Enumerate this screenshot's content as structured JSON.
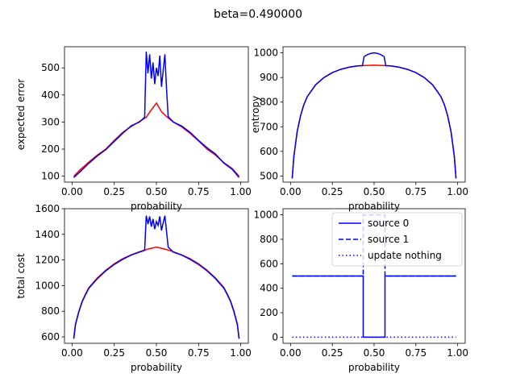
{
  "figure": {
    "suptitle": "beta=0.490000"
  },
  "colors": {
    "red": "#ff0000",
    "blue": "#0000ff",
    "axis": "#000000"
  },
  "chart_data": [
    {
      "id": "expected-error",
      "type": "line",
      "xlabel": "probability",
      "ylabel": "expected error",
      "xlim": [
        -0.045,
        1.045
      ],
      "ylim": [
        78,
        578
      ],
      "xticks": [
        0.0,
        0.25,
        0.5,
        0.75,
        1.0
      ],
      "xtick_labels": [
        "0.00",
        "0.25",
        "0.50",
        "0.75",
        "1.00"
      ],
      "yticks": [
        100,
        200,
        300,
        400,
        500
      ],
      "ytick_labels": [
        "100",
        "200",
        "300",
        "400",
        "500"
      ],
      "series": [
        {
          "color": "red",
          "style": "solid",
          "x": [
            0.01,
            0.05,
            0.1,
            0.15,
            0.2,
            0.25,
            0.3,
            0.35,
            0.4,
            0.44,
            0.47,
            0.5,
            0.53,
            0.56,
            0.6,
            0.65,
            0.7,
            0.75,
            0.8,
            0.85,
            0.9,
            0.95,
            0.99
          ],
          "y": [
            100,
            125,
            152,
            178,
            200,
            232,
            262,
            283,
            302,
            318,
            345,
            370,
            338,
            320,
            300,
            282,
            258,
            230,
            200,
            178,
            150,
            128,
            100
          ]
        },
        {
          "color": "blue",
          "style": "solid",
          "x": [
            0.01,
            0.05,
            0.1,
            0.15,
            0.2,
            0.25,
            0.3,
            0.35,
            0.4,
            0.43,
            0.44,
            0.45,
            0.46,
            0.47,
            0.48,
            0.49,
            0.5,
            0.51,
            0.52,
            0.53,
            0.54,
            0.55,
            0.56,
            0.57,
            0.6,
            0.65,
            0.7,
            0.75,
            0.8,
            0.85,
            0.9,
            0.95,
            0.99
          ],
          "y": [
            95,
            118,
            148,
            175,
            198,
            228,
            258,
            286,
            300,
            318,
            560,
            480,
            550,
            460,
            520,
            440,
            500,
            470,
            545,
            430,
            490,
            550,
            420,
            320,
            300,
            285,
            262,
            232,
            205,
            182,
            148,
            125,
            95
          ]
        }
      ]
    },
    {
      "id": "entropy",
      "type": "line",
      "xlabel": "probability",
      "ylabel": "entropy",
      "xlim": [
        -0.045,
        1.045
      ],
      "ylim": [
        475,
        1025
      ],
      "xticks": [
        0.0,
        0.25,
        0.5,
        0.75,
        1.0
      ],
      "xtick_labels": [
        "0.00",
        "0.25",
        "0.50",
        "0.75",
        "1.00"
      ],
      "yticks": [
        500,
        600,
        700,
        800,
        900,
        1000
      ],
      "ytick_labels": [
        "500",
        "600",
        "700",
        "800",
        "900",
        "1000"
      ],
      "series": [
        {
          "color": "red",
          "style": "solid",
          "x": [
            0.01,
            0.02,
            0.04,
            0.06,
            0.08,
            0.1,
            0.15,
            0.2,
            0.25,
            0.3,
            0.35,
            0.4,
            0.45,
            0.5,
            0.55,
            0.6,
            0.65,
            0.7,
            0.75,
            0.8,
            0.85,
            0.9,
            0.92,
            0.94,
            0.96,
            0.98,
            0.99
          ],
          "y": [
            490,
            580,
            680,
            745,
            790,
            822,
            870,
            900,
            920,
            933,
            942,
            947,
            949,
            950,
            949,
            947,
            942,
            933,
            920,
            900,
            870,
            822,
            790,
            745,
            680,
            580,
            490
          ]
        },
        {
          "color": "blue",
          "style": "solid",
          "x": [
            0.01,
            0.02,
            0.04,
            0.06,
            0.08,
            0.1,
            0.15,
            0.2,
            0.25,
            0.3,
            0.35,
            0.4,
            0.43,
            0.44,
            0.46,
            0.48,
            0.5,
            0.52,
            0.54,
            0.56,
            0.57,
            0.6,
            0.65,
            0.7,
            0.75,
            0.8,
            0.85,
            0.9,
            0.92,
            0.94,
            0.96,
            0.98,
            0.99
          ],
          "y": [
            490,
            580,
            680,
            745,
            790,
            822,
            870,
            900,
            920,
            933,
            942,
            947,
            948,
            985,
            993,
            998,
            1000,
            998,
            993,
            985,
            948,
            947,
            942,
            933,
            920,
            900,
            870,
            822,
            790,
            745,
            680,
            580,
            490
          ]
        }
      ]
    },
    {
      "id": "total-cost",
      "type": "line",
      "xlabel": "probability",
      "ylabel": "total cost",
      "xlim": [
        -0.045,
        1.045
      ],
      "ylim": [
        550,
        1600
      ],
      "xticks": [
        0.0,
        0.25,
        0.5,
        0.75,
        1.0
      ],
      "xtick_labels": [
        "0.00",
        "0.25",
        "0.50",
        "0.75",
        "1.00"
      ],
      "yticks": [
        600,
        800,
        1000,
        1200,
        1400,
        1600
      ],
      "ytick_labels": [
        "600",
        "800",
        "1000",
        "1200",
        "1400",
        "1600"
      ],
      "series": [
        {
          "color": "red",
          "style": "solid",
          "x": [
            0.01,
            0.02,
            0.04,
            0.06,
            0.08,
            0.1,
            0.15,
            0.2,
            0.25,
            0.3,
            0.35,
            0.4,
            0.45,
            0.5,
            0.55,
            0.6,
            0.65,
            0.7,
            0.75,
            0.8,
            0.85,
            0.9,
            0.92,
            0.94,
            0.96,
            0.98,
            0.99
          ],
          "y": [
            590,
            700,
            800,
            880,
            935,
            985,
            1060,
            1120,
            1170,
            1210,
            1240,
            1265,
            1285,
            1300,
            1285,
            1265,
            1240,
            1210,
            1170,
            1120,
            1060,
            985,
            935,
            880,
            800,
            700,
            590
          ]
        },
        {
          "color": "blue",
          "style": "solid",
          "x": [
            0.01,
            0.02,
            0.04,
            0.06,
            0.08,
            0.1,
            0.15,
            0.2,
            0.25,
            0.3,
            0.35,
            0.4,
            0.43,
            0.44,
            0.45,
            0.46,
            0.47,
            0.48,
            0.49,
            0.5,
            0.51,
            0.52,
            0.53,
            0.54,
            0.55,
            0.56,
            0.57,
            0.6,
            0.65,
            0.7,
            0.75,
            0.8,
            0.85,
            0.9,
            0.92,
            0.94,
            0.96,
            0.98,
            0.99
          ],
          "y": [
            585,
            695,
            795,
            875,
            930,
            980,
            1055,
            1115,
            1165,
            1205,
            1238,
            1262,
            1275,
            1545,
            1480,
            1540,
            1460,
            1520,
            1440,
            1500,
            1470,
            1540,
            1430,
            1490,
            1545,
            1420,
            1300,
            1262,
            1238,
            1205,
            1165,
            1115,
            1055,
            980,
            930,
            875,
            795,
            695,
            585
          ]
        }
      ]
    },
    {
      "id": "decision",
      "type": "line",
      "xlabel": "probability",
      "ylabel": "",
      "xlim": [
        -0.045,
        1.045
      ],
      "ylim": [
        -50,
        1050
      ],
      "xticks": [
        0.0,
        0.25,
        0.5,
        0.75,
        1.0
      ],
      "xtick_labels": [
        "0.00",
        "0.25",
        "0.50",
        "0.75",
        "1.00"
      ],
      "yticks": [
        0,
        200,
        400,
        600,
        800,
        1000
      ],
      "ytick_labels": [
        "0",
        "200",
        "400",
        "600",
        "800",
        "1000"
      ],
      "legend": {
        "placement": "top-right"
      },
      "series": [
        {
          "name": "source 0",
          "color": "blue",
          "style": "solid",
          "x": [
            0.01,
            0.435,
            0.435,
            0.565,
            0.565,
            0.99
          ],
          "y": [
            500,
            500,
            0,
            0,
            500,
            500
          ]
        },
        {
          "name": "source 1",
          "color": "blue",
          "style": "dashed",
          "x": [
            0.01,
            0.435,
            0.435,
            0.565,
            0.565,
            0.99
          ],
          "y": [
            500,
            500,
            1000,
            1000,
            500,
            500
          ]
        },
        {
          "name": "update nothing",
          "color": "blue",
          "style": "dotted",
          "x": [
            0.01,
            0.99
          ],
          "y": [
            0,
            0
          ]
        }
      ]
    }
  ]
}
